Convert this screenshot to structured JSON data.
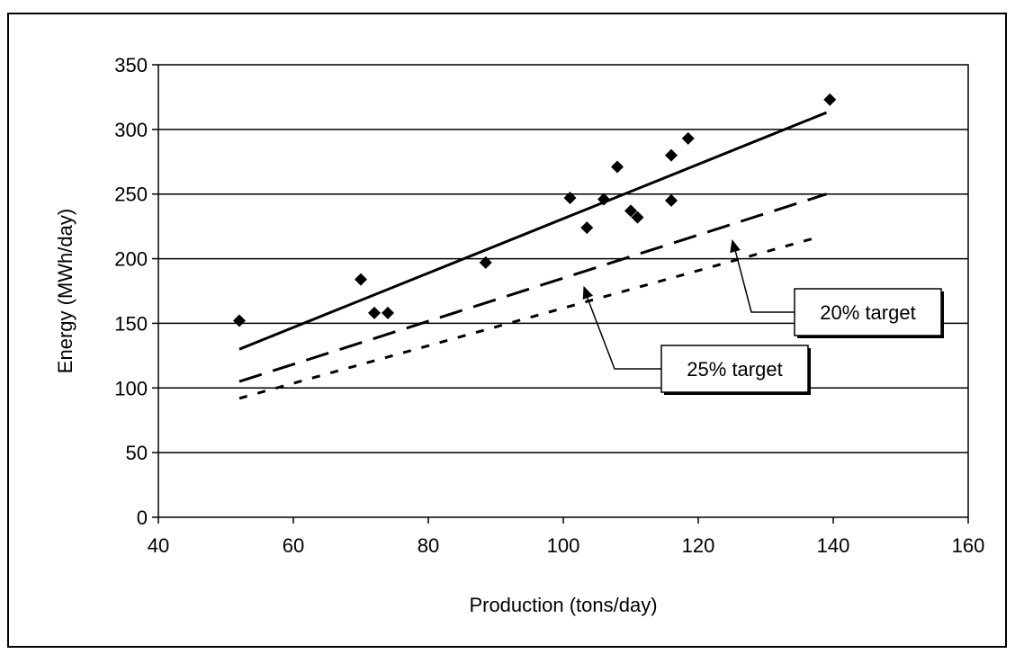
{
  "chart_data": {
    "type": "scatter",
    "title": "",
    "xlabel": "Production (tons/day)",
    "ylabel": "Energy (MWh/day)",
    "xlim": [
      40,
      160
    ],
    "ylim": [
      0,
      350
    ],
    "xticks": [
      40,
      60,
      80,
      100,
      120,
      140,
      160
    ],
    "yticks": [
      0,
      50,
      100,
      150,
      200,
      250,
      300,
      350
    ],
    "grid": "horizontal",
    "legend": "none",
    "points": [
      {
        "x": 52,
        "y": 152
      },
      {
        "x": 70,
        "y": 184
      },
      {
        "x": 72,
        "y": 158
      },
      {
        "x": 74,
        "y": 158
      },
      {
        "x": 88.5,
        "y": 197
      },
      {
        "x": 101,
        "y": 247
      },
      {
        "x": 103.5,
        "y": 224
      },
      {
        "x": 106,
        "y": 246
      },
      {
        "x": 108,
        "y": 271
      },
      {
        "x": 110,
        "y": 237
      },
      {
        "x": 111,
        "y": 232
      },
      {
        "x": 116,
        "y": 280
      },
      {
        "x": 116,
        "y": 245
      },
      {
        "x": 118.5,
        "y": 293
      },
      {
        "x": 139.5,
        "y": 323
      }
    ],
    "lines": [
      {
        "style": "solid",
        "x": [
          52,
          139
        ],
        "y": [
          130,
          313
        ]
      },
      {
        "style": "dashed",
        "x": [
          52,
          139
        ],
        "y": [
          105,
          250
        ]
      },
      {
        "style": "dotted",
        "x": [
          52,
          138
        ],
        "y": [
          92,
          217
        ]
      }
    ],
    "annotations": [
      {
        "text": "20% target",
        "points_to": {
          "x": 125,
          "y": 215
        }
      },
      {
        "text": "25% target",
        "points_to": {
          "x": 103,
          "y": 179
        }
      }
    ],
    "colors": {
      "markers": "#000000",
      "lines": "#000000",
      "grid": "#000000",
      "background": "#ffffff"
    }
  }
}
